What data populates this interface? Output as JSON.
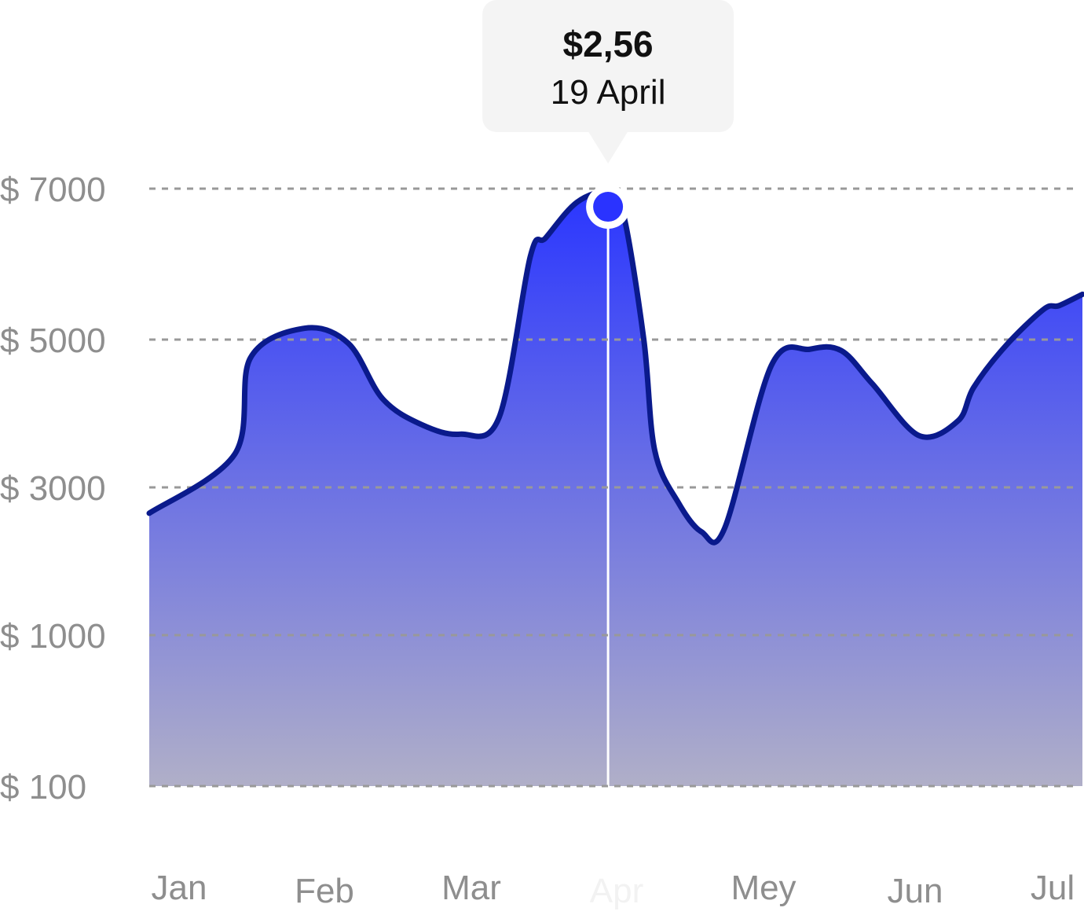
{
  "chart_data": {
    "type": "area",
    "title": "",
    "xlabel": "",
    "ylabel": "",
    "categories": [
      "Jan",
      "Feb",
      "Mar",
      "Apr",
      "Mey",
      "Jun",
      "Jul"
    ],
    "active_category": "Apr",
    "y_ticks": [
      {
        "value": 100,
        "label": "$ 100"
      },
      {
        "value": 1000,
        "label": "$ 1000"
      },
      {
        "value": 3000,
        "label": "$ 3000"
      },
      {
        "value": 5000,
        "label": "$ 5000"
      },
      {
        "value": 7000,
        "label": "$ 7000"
      }
    ],
    "y_scale": "piecewise-linear between labelled ticks",
    "ylim": [
      100,
      7000
    ],
    "grid": true,
    "series": [
      {
        "x": [
          0.0,
          0.55,
          0.65,
          1.0,
          1.28,
          1.5,
          1.75,
          2.0,
          2.25,
          2.45,
          2.55,
          2.75,
          2.95,
          3.05,
          3.18,
          3.25,
          3.4,
          3.55,
          3.7,
          4.0,
          4.25,
          4.45,
          4.65,
          4.95,
          5.2,
          5.3,
          5.5,
          5.75,
          5.85,
          6.0
        ],
        "values": [
          2650,
          3450,
          4750,
          5150,
          4950,
          4200,
          3850,
          3720,
          3950,
          6100,
          6350,
          6820,
          6950,
          6650,
          5000,
          3500,
          2800,
          2400,
          2450,
          4650,
          4870,
          4850,
          4400,
          3700,
          3900,
          4350,
          4900,
          5400,
          5450,
          5600
        ]
      }
    ],
    "highlight": {
      "x": 2.95,
      "y": 6760,
      "value_label": "$2,56",
      "date_label": "19 April"
    },
    "colors": {
      "line": "#0a1a8c",
      "fill_top": "#2a36ff",
      "fill_bottom": "#b0afc8",
      "grid": "#999999",
      "marker": "#2a33ff",
      "tooltip_bg": "#f4f4f4",
      "tick_text": "#8e8e8e",
      "active_tick_text": "#f2f2f2"
    }
  }
}
